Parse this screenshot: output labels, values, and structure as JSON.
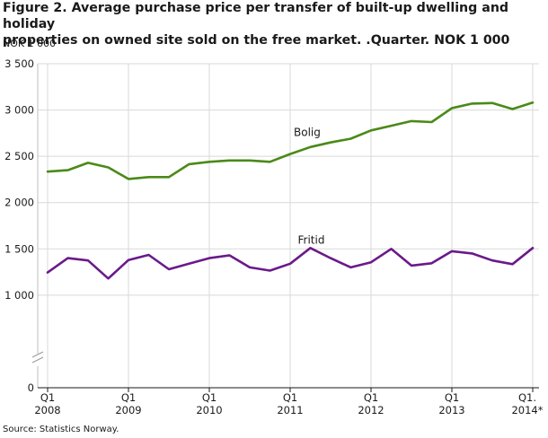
{
  "title_lines": [
    "Figure 2. Average purchase price per transfer of built-up dwelling and holiday",
    "properties on owned site sold on the free market. .Quarter. NOK 1 000"
  ],
  "source": "Source: Statistics Norway.",
  "chart_data": {
    "type": "line",
    "title": "Figure 2. Average purchase price per transfer of built-up dwelling and holiday properties on owned site sold on the free market. .Quarter. NOK 1 000",
    "ylabel": "NOK 1 000",
    "xlabel": "",
    "ylim": [
      0,
      3500
    ],
    "y_ticks": [
      0,
      500,
      1000,
      1500,
      2000,
      2500,
      3000,
      3500
    ],
    "y_tick_labels": [
      "0",
      "1 000",
      "1 500",
      "2 000",
      "2 500",
      "3 000",
      "3 500"
    ],
    "axis_break": true,
    "grid": true,
    "x": [
      "2008Q1",
      "2008Q2",
      "2008Q3",
      "2008Q4",
      "2009Q1",
      "2009Q2",
      "2009Q3",
      "2009Q4",
      "2010Q1",
      "2010Q2",
      "2010Q3",
      "2010Q4",
      "2011Q1",
      "2011Q2",
      "2011Q3",
      "2011Q4",
      "2012Q1",
      "2012Q2",
      "2012Q3",
      "2012Q4",
      "2013Q1",
      "2013Q2",
      "2013Q3",
      "2013Q4",
      "2014Q1"
    ],
    "x_tick_labels": [
      {
        "top": "Q1",
        "bottom": "2008"
      },
      {
        "top": "Q1",
        "bottom": "2009"
      },
      {
        "top": "Q1",
        "bottom": "2010"
      },
      {
        "top": "Q1",
        "bottom": "2011"
      },
      {
        "top": "Q1",
        "bottom": "2012"
      },
      {
        "top": "Q1",
        "bottom": "2013"
      },
      {
        "top": "Q1.",
        "bottom": "2014*"
      }
    ],
    "series": [
      {
        "name": "Bolig",
        "color": "#4a8a18",
        "values": [
          2335,
          2350,
          2430,
          2380,
          2255,
          2275,
          2275,
          2415,
          2440,
          2455,
          2455,
          2440,
          2525,
          2600,
          2650,
          2690,
          2780,
          2830,
          2880,
          2870,
          3020,
          3070,
          3075,
          3010,
          3080
        ]
      },
      {
        "name": "Fritid",
        "color": "#6a1a8a",
        "values": [
          1245,
          1400,
          1375,
          1180,
          1380,
          1435,
          1280,
          1340,
          1400,
          1430,
          1300,
          1265,
          1340,
          1510,
          1400,
          1300,
          1355,
          1500,
          1320,
          1345,
          1475,
          1450,
          1375,
          1335,
          1510
        ]
      }
    ]
  }
}
